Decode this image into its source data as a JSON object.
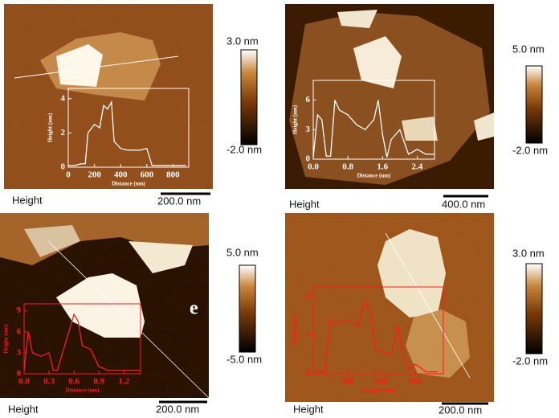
{
  "panels": [
    {
      "colorbar": {
        "max": "3.0 nm",
        "min": "-2.0 nm"
      },
      "label": "Height",
      "scale_bar": "200.0 nm",
      "profile": {
        "color": "#ffffff",
        "xlabel": "Distance (nm)",
        "ylabel": "Height (nm)",
        "xlim": [
          0,
          920
        ],
        "ylim": [
          0,
          4.6
        ],
        "xticks": [
          0,
          200,
          400,
          600,
          800
        ],
        "yticks": [
          0,
          2,
          4
        ],
        "x": [
          0,
          50,
          100,
          130,
          150,
          200,
          240,
          270,
          300,
          330,
          350,
          400,
          450,
          500,
          550,
          600,
          640,
          680,
          750,
          800,
          850,
          900
        ],
        "values": [
          0.1,
          0.1,
          0.2,
          0.2,
          2.0,
          2.5,
          2.3,
          3.6,
          3.4,
          3.8,
          1.5,
          1.1,
          1.0,
          1.0,
          1.0,
          1.1,
          0.1,
          0.1,
          0.1,
          0.1,
          0.1,
          0.1
        ]
      }
    },
    {
      "colorbar": {
        "max": "5.0 nm",
        "min": "-2.0 nm"
      },
      "label": "Height",
      "scale_bar": "400.0 nm",
      "profile": {
        "color": "#ffffff",
        "xlabel": "Distance (um)",
        "ylabel": "Height (nm)",
        "xlim": [
          0,
          2.8
        ],
        "ylim": [
          0,
          8
        ],
        "xticks": [
          {
            "value": 0,
            "label": "0.0"
          },
          0.8,
          1.6,
          2.4
        ],
        "yticks": [
          0,
          3,
          6
        ],
        "x": [
          0,
          0.1,
          0.2,
          0.3,
          0.4,
          0.5,
          0.6,
          0.8,
          1.0,
          1.2,
          1.4,
          1.5,
          1.6,
          1.7,
          1.8,
          2.0,
          2.2,
          2.4,
          2.6,
          2.8
        ],
        "values": [
          0.2,
          4.5,
          4.0,
          0.3,
          0.3,
          6.0,
          5.0,
          4.5,
          3.5,
          3.0,
          4.0,
          6.0,
          2.5,
          0.2,
          2.0,
          3.0,
          0.5,
          1.0,
          0.5,
          0.5
        ]
      }
    },
    {
      "colorbar": {
        "max": "5.0 nm",
        "min": "-5.0 nm"
      },
      "label": "Height",
      "scale_bar": "200.0 nm",
      "tag": "e",
      "profile": {
        "color": "#ff1a1a",
        "xlabel": "Distance (um)",
        "ylabel": "Height (nm)",
        "xlim": [
          0,
          1.4
        ],
        "ylim": [
          0,
          10
        ],
        "xticks": [
          {
            "value": 0,
            "label": "0.0"
          },
          0.3,
          0.6,
          0.9,
          1.2
        ],
        "yticks": [
          0,
          3,
          6,
          9
        ],
        "x": [
          0,
          0.05,
          0.1,
          0.2,
          0.3,
          0.35,
          0.4,
          0.5,
          0.6,
          0.65,
          0.7,
          0.8,
          0.9,
          0.95,
          1.0,
          1.1,
          1.2,
          1.3,
          1.4
        ],
        "values": [
          0.5,
          6.0,
          3.0,
          2.5,
          3.0,
          0.5,
          0.5,
          4.5,
          8.5,
          7.5,
          4.0,
          3.5,
          1.0,
          0.8,
          0.5,
          0.5,
          0.5,
          0.5,
          0.5
        ]
      }
    },
    {
      "colorbar": {
        "max": "3.0 nm",
        "min": "-2.0 nm"
      },
      "label": "Height",
      "scale_bar": "200.0 nm",
      "profile": {
        "color": "#ff1a1a",
        "xlabel": "Distance (nm)",
        "ylabel": "Height (nm)",
        "xlim": [
          0,
          1150
        ],
        "ylim": [
          0,
          4.5
        ],
        "xticks": [
          300,
          600,
          900
        ],
        "yticks": [
          0,
          2,
          4
        ],
        "x": [
          0,
          50,
          100,
          150,
          200,
          300,
          400,
          450,
          500,
          550,
          600,
          650,
          700,
          750,
          800,
          850,
          900,
          1000,
          1100
        ],
        "values": [
          0.1,
          0.1,
          0.1,
          2.8,
          2.6,
          2.8,
          2.5,
          3.7,
          3.5,
          1.3,
          1.2,
          1.0,
          1.1,
          2.5,
          0.8,
          0.2,
          0.5,
          0.1,
          0.1
        ]
      }
    }
  ]
}
